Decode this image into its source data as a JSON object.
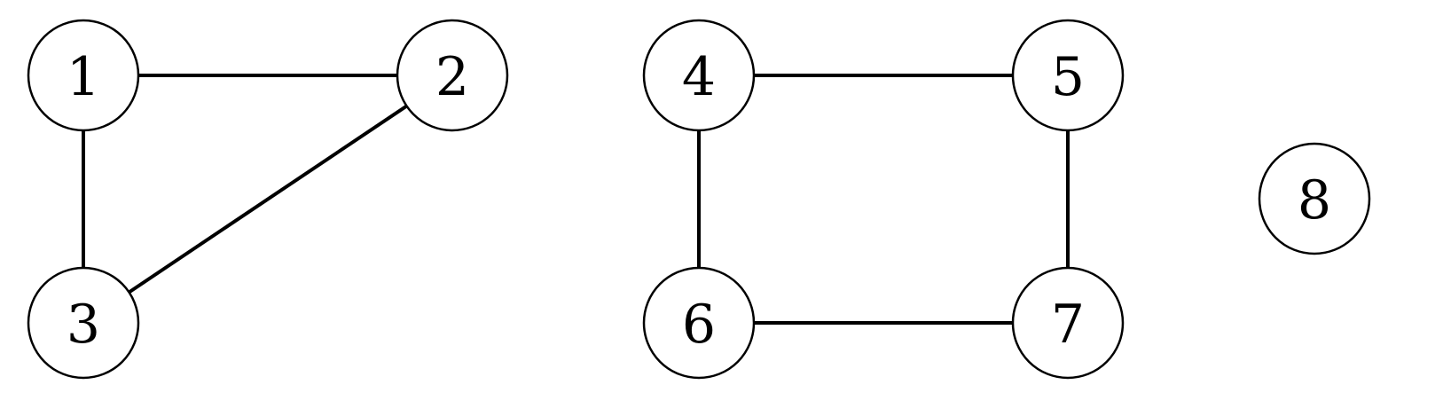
{
  "graph": {
    "nodes": [
      {
        "id": "1",
        "label": "1"
      },
      {
        "id": "2",
        "label": "2"
      },
      {
        "id": "3",
        "label": "3"
      },
      {
        "id": "4",
        "label": "4"
      },
      {
        "id": "5",
        "label": "5"
      },
      {
        "id": "6",
        "label": "6"
      },
      {
        "id": "7",
        "label": "7"
      },
      {
        "id": "8",
        "label": "8"
      }
    ],
    "edges": [
      {
        "source": "1",
        "target": "2"
      },
      {
        "source": "1",
        "target": "3"
      },
      {
        "source": "2",
        "target": "3"
      },
      {
        "source": "4",
        "target": "5"
      },
      {
        "source": "4",
        "target": "6"
      },
      {
        "source": "5",
        "target": "7"
      },
      {
        "source": "6",
        "target": "7"
      }
    ]
  }
}
